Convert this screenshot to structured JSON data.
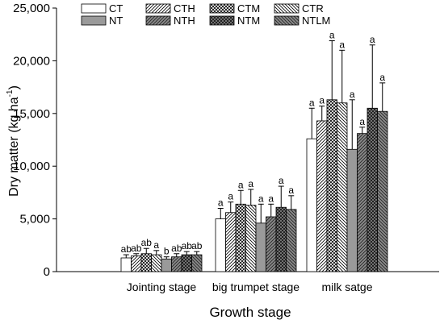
{
  "chart_data": {
    "type": "bar",
    "xlabel": "Growth stage",
    "ylabel_main": "Dry matter (kg ha",
    "ylabel_sup": "-1",
    "ylabel_close": ")",
    "ylim": [
      0,
      25000
    ],
    "yticks": [
      0,
      5000,
      10000,
      15000,
      20000,
      25000
    ],
    "ytick_labels": [
      "0",
      "5,000",
      "10,000",
      "15,000",
      "20,000",
      "25,000"
    ],
    "categories": [
      "Jointing stage",
      "big trumpet stage",
      "milk satge"
    ],
    "legend_position": "top-right",
    "series": [
      {
        "name": "CT",
        "pattern": "white",
        "values": [
          1300,
          5000,
          12600
        ],
        "errors": [
          300,
          1000,
          2900
        ],
        "letters": [
          "ab",
          "a",
          "a"
        ]
      },
      {
        "name": "CTH",
        "pattern": "hatch",
        "values": [
          1500,
          5600,
          14300
        ],
        "errors": [
          200,
          1000,
          1400
        ],
        "letters": [
          "ab",
          "a",
          "a"
        ]
      },
      {
        "name": "CTM",
        "pattern": "cross",
        "values": [
          1700,
          6400,
          16300
        ],
        "errors": [
          500,
          1300,
          5600
        ],
        "letters": [
          "ab",
          "a",
          "a"
        ]
      },
      {
        "name": "CTR",
        "pattern": "backhatch",
        "values": [
          1600,
          6300,
          16000
        ],
        "errors": [
          400,
          1500,
          5000
        ],
        "letters": [
          "a",
          "a",
          "a"
        ]
      },
      {
        "name": "NT",
        "pattern": "gray",
        "values": [
          1200,
          4600,
          11600
        ],
        "errors": [
          200,
          1800,
          4700
        ],
        "letters": [
          "b",
          "a",
          "a"
        ]
      },
      {
        "name": "NTH",
        "pattern": "darkhatch",
        "values": [
          1400,
          5200,
          13100
        ],
        "errors": [
          300,
          1200,
          600
        ],
        "letters": [
          "ab",
          "a",
          "a"
        ]
      },
      {
        "name": "NTM",
        "pattern": "darkcross",
        "values": [
          1600,
          6100,
          15500
        ],
        "errors": [
          300,
          2000,
          6000
        ],
        "letters": [
          "ab",
          "a",
          "a"
        ]
      },
      {
        "name": "NTLM",
        "pattern": "darkback",
        "values": [
          1600,
          5900,
          15200
        ],
        "errors": [
          300,
          1300,
          2700
        ],
        "letters": [
          "ab",
          "a",
          "a"
        ]
      }
    ]
  }
}
